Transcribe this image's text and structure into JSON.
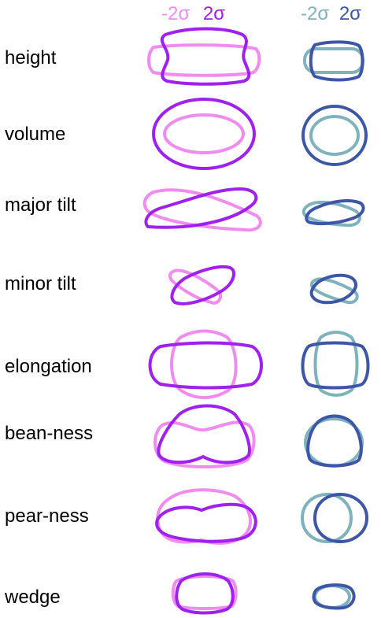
{
  "legend": {
    "left_minus": "-2σ",
    "left_plus": "2σ",
    "right_minus": "-2σ",
    "right_plus": "2σ"
  },
  "colors": {
    "left_minus": "#f08cf0",
    "left_plus": "#a020f0",
    "right_minus": "#7eb3bd",
    "right_plus": "#3d56a8"
  },
  "rows": [
    {
      "label": "height"
    },
    {
      "label": "volume"
    },
    {
      "label": "major tilt"
    },
    {
      "label": "minor tilt"
    },
    {
      "label": "elongation"
    },
    {
      "label": "bean-ness"
    },
    {
      "label": "pear-ness"
    },
    {
      "label": "wedge"
    }
  ]
}
